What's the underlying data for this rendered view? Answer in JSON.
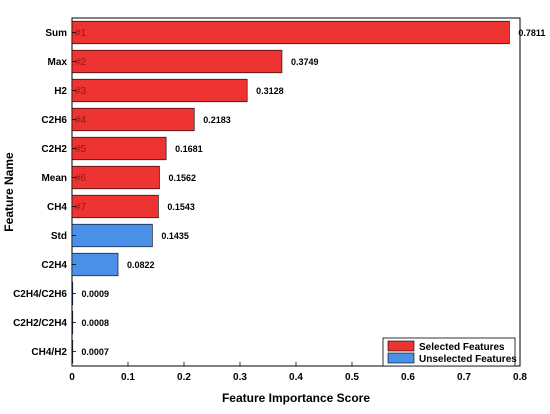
{
  "chart_data": {
    "type": "bar",
    "orientation": "horizontal",
    "xlabel": "Feature Importance Score",
    "ylabel": "Feature Name",
    "xlim": [
      0,
      0.8
    ],
    "xticks": [
      "0",
      "0.1",
      "0.2",
      "0.3",
      "0.4",
      "0.5",
      "0.6",
      "0.7",
      "0.8"
    ],
    "grid": false,
    "legend_position": "bottom-right",
    "categories": [
      "Sum",
      "Max",
      "H2",
      "C2H6",
      "C2H2",
      "Mean",
      "CH4",
      "Std",
      "C2H4",
      "C2H4/C2H6",
      "C2H2/C2H4",
      "CH4/H2"
    ],
    "values": [
      0.7811,
      0.3749,
      0.3128,
      0.2183,
      0.1681,
      0.1562,
      0.1543,
      0.1435,
      0.0822,
      0.0009,
      0.0008,
      0.0007
    ],
    "value_labels": [
      "0.7811",
      "0.3749",
      "0.3128",
      "0.2183",
      "0.1681",
      "0.1562",
      "0.1543",
      "0.1435",
      "0.0822",
      "0.0009",
      "0.0008",
      "0.0007"
    ],
    "ranks": [
      "#1",
      "#2",
      "#3",
      "#4",
      "#5",
      "#6",
      "#7",
      "",
      "",
      "",
      "",
      ""
    ],
    "groups": [
      "selected",
      "selected",
      "selected",
      "selected",
      "selected",
      "selected",
      "selected",
      "unselected",
      "unselected",
      "unselected",
      "unselected",
      "unselected"
    ],
    "legend": [
      {
        "key": "selected",
        "label": "Selected Features",
        "color": "#ee3333"
      },
      {
        "key": "unselected",
        "label": "Unselected Features",
        "color": "#4a90e8"
      }
    ],
    "colors": {
      "selected": "#ee3333",
      "unselected": "#4a90e8",
      "rank_text": "#8b1a1a"
    }
  }
}
